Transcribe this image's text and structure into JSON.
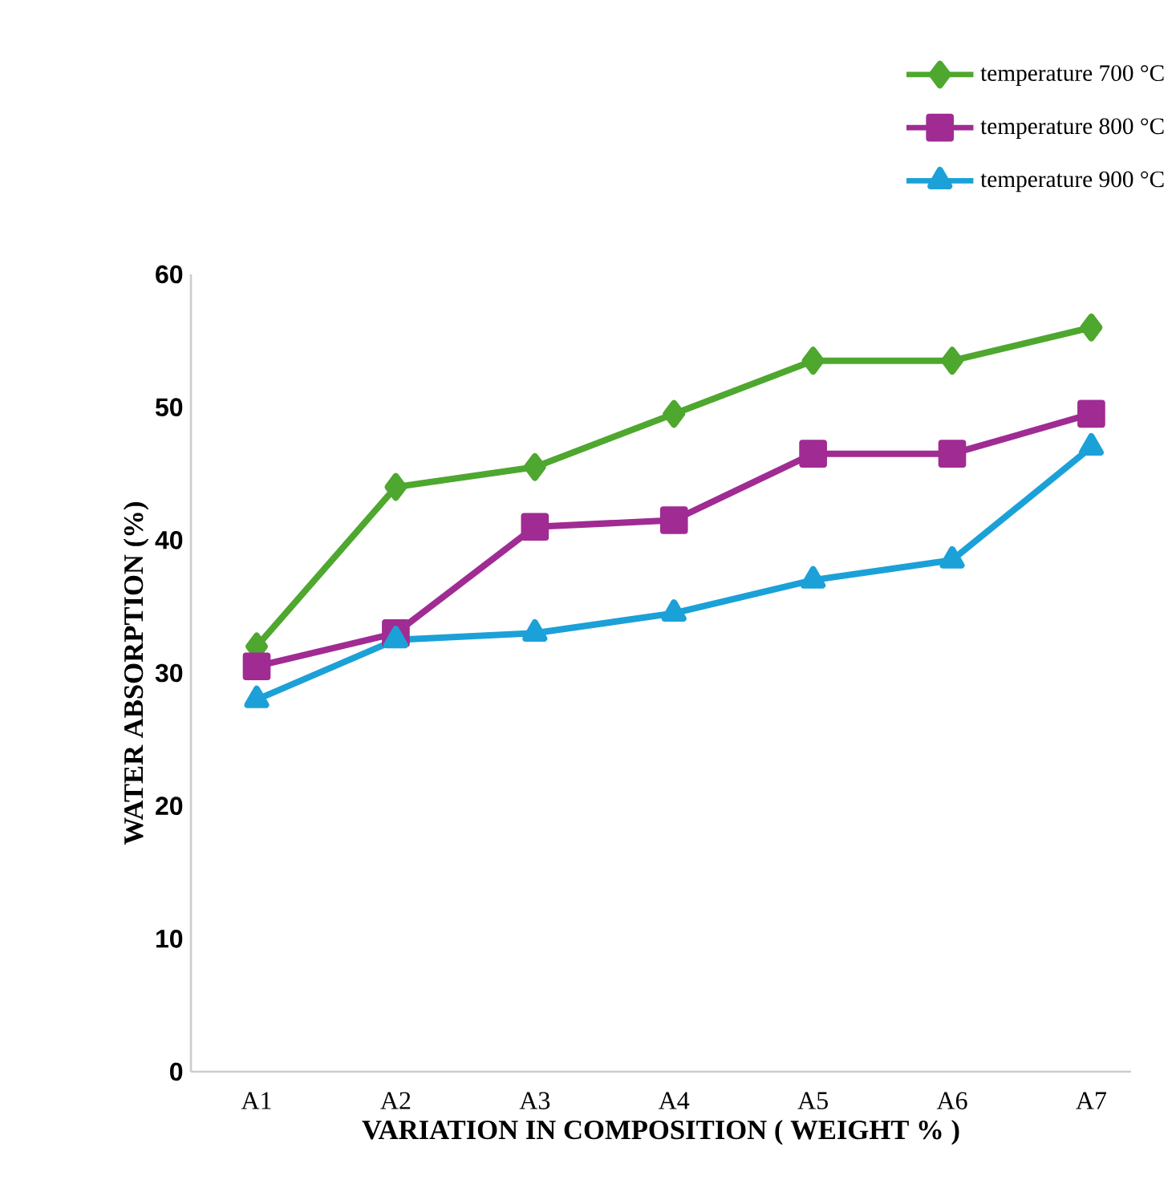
{
  "chart_data": {
    "type": "line",
    "xlabel": "VARIATION IN COMPOSITION ( WEIGHT % )",
    "ylabel": "WATER ABSORPTION (%)",
    "categories": [
      "A1",
      "A2",
      "A3",
      "A4",
      "A5",
      "A6",
      "A7"
    ],
    "series": [
      {
        "name": "temperature 700 °C",
        "color": "#4ea72e",
        "marker": "diamond",
        "values": [
          32,
          44,
          45.5,
          49.5,
          53.5,
          53.5,
          56
        ]
      },
      {
        "name": "temperature 800 °C",
        "color": "#a02b93",
        "marker": "square",
        "values": [
          30.5,
          33,
          41,
          41.5,
          46.5,
          46.5,
          49.5
        ]
      },
      {
        "name": "temperature 900 °C",
        "color": "#1ba1d8",
        "marker": "triangle",
        "values": [
          28,
          32.5,
          33,
          34.5,
          37,
          38.5,
          47
        ]
      }
    ],
    "ylim": [
      0,
      60
    ],
    "yticks": [
      0,
      10,
      20,
      30,
      40,
      50,
      60
    ],
    "grid": false,
    "legend": "top right",
    "line_style": "solid"
  }
}
